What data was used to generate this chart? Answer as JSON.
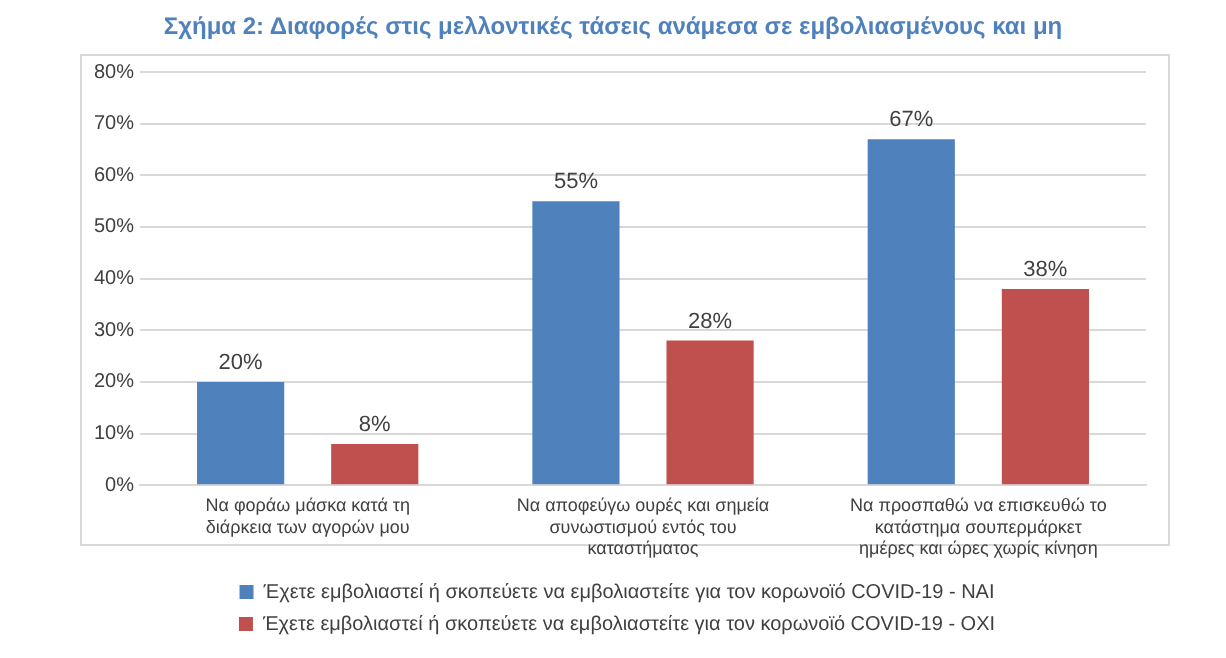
{
  "chart_data": {
    "type": "bar",
    "title": "Σχήμα 2: Διαφορές στις μελλοντικές τάσεις ανάμεσα σε εμβολιασμένους και μη",
    "categories": [
      "Να φοράω μάσκα κατά τη διάρκεια των αγορών μου",
      "Να αποφεύγω ουρές και σημεία συνωστισμού εντός του καταστήματος",
      "Να προσπαθώ να επισκευθώ το κατάστημα σουπερμάρκετ ημέρες και ώρες χωρίς κίνηση"
    ],
    "series": [
      {
        "name": "Έχετε εμβολιαστεί ή σκοπεύετε να εμβολιαστείτε για τον κορωνοϊό COVID-19 - ΝΑΙ",
        "color": "#4f81bd",
        "values": [
          20,
          55,
          67
        ],
        "value_labels": [
          "20%",
          "55%",
          "67%"
        ]
      },
      {
        "name": "Έχετε εμβολιαστεί ή σκοπεύετε να εμβολιαστείτε για τον κορωνοϊό COVID-19 - ΟΧΙ",
        "color": "#c0504d",
        "values": [
          8,
          28,
          38
        ],
        "value_labels": [
          "8%",
          "28%",
          "38%"
        ]
      }
    ],
    "ylim": [
      0,
      80
    ],
    "yticks": [
      {
        "value": 0,
        "label": "0%"
      },
      {
        "value": 10,
        "label": "10%"
      },
      {
        "value": 20,
        "label": "20%"
      },
      {
        "value": 30,
        "label": "30%"
      },
      {
        "value": 40,
        "label": "40%"
      },
      {
        "value": 50,
        "label": "50%"
      },
      {
        "value": 60,
        "label": "60%"
      },
      {
        "value": 70,
        "label": "70%"
      },
      {
        "value": 80,
        "label": "80%"
      }
    ],
    "grid": "y",
    "legend": "bottom"
  }
}
